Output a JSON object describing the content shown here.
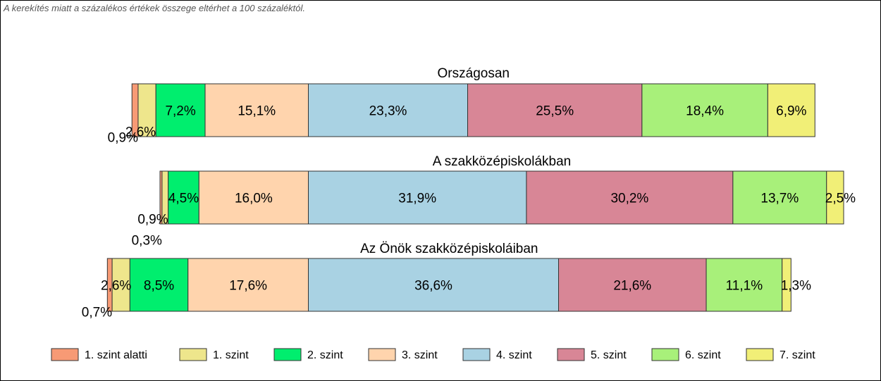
{
  "note": "A kerekítés miatt a  százalékos értékek összege eltérhet a 100 százaléktól.",
  "chart_data": {
    "type": "bar",
    "orientation": "horizontal",
    "stacked": true,
    "unit": "%",
    "legend_position": "bottom",
    "grid": false,
    "levels": [
      "1. szint alatti",
      "1. szint",
      "2. szint",
      "3. szint",
      "4. szint",
      "5. szint",
      "6. szint",
      "7. szint"
    ],
    "colors": [
      "#f79a75",
      "#eee68c",
      "#00ee6e",
      "#ffd4ad",
      "#a9d2e3",
      "#d88696",
      "#a8f07a",
      "#f1ef77"
    ],
    "groups": [
      {
        "title": "Országosan",
        "values": [
          0.9,
          2.6,
          7.2,
          15.1,
          23.3,
          25.5,
          18.4,
          6.9
        ],
        "labels": [
          "0,9%",
          "2,6%",
          "7,2%",
          "15,1%",
          "23,3%",
          "25,5%",
          "18,4%",
          "6,9%"
        ]
      },
      {
        "title": "A szakközépiskolákban",
        "values": [
          0.3,
          0.9,
          4.5,
          16.0,
          31.9,
          30.2,
          13.7,
          2.5
        ],
        "labels": [
          "0,3%",
          "0,9%",
          "4,5%",
          "16,0%",
          "31,9%",
          "30,2%",
          "13,7%",
          "2,5%"
        ]
      },
      {
        "title": "Az Önök szakközépiskoláiban",
        "values": [
          0.7,
          2.6,
          8.5,
          17.6,
          36.6,
          21.6,
          11.1,
          1.3
        ],
        "labels": [
          "0,7%",
          "2,6%",
          "8,5%",
          "17,6%",
          "36,6%",
          "21,6%",
          "11,1%",
          "1,3%"
        ]
      }
    ]
  }
}
